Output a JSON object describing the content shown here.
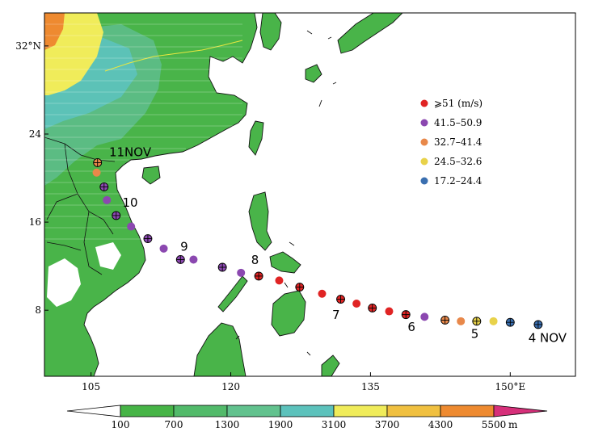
{
  "map": {
    "lon_range": [
      100,
      157
    ],
    "lat_range": [
      2,
      35
    ],
    "lon_ticks": [
      {
        "value": 105,
        "label": "105"
      },
      {
        "value": 120,
        "label": "120"
      },
      {
        "value": 135,
        "label": "135"
      },
      {
        "value": 150,
        "label": "150°E"
      }
    ],
    "lat_ticks": [
      {
        "value": 8,
        "label": "8"
      },
      {
        "value": 16,
        "label": "16"
      },
      {
        "value": 24,
        "label": "24"
      },
      {
        "value": 32,
        "label": "32°N"
      }
    ]
  },
  "legend": {
    "items": [
      {
        "label": "⩾51 (m/s)",
        "color": "#e02424"
      },
      {
        "label": "41.5–50.9",
        "color": "#8b48b0"
      },
      {
        "label": "32.7–41.4",
        "color": "#e8884a"
      },
      {
        "label": "24.5–32.6",
        "color": "#e8d24a"
      },
      {
        "label": "17.2–24.4",
        "color": "#3a6fb0"
      }
    ]
  },
  "colorbar": {
    "labels": [
      "100",
      "700",
      "1300",
      "1900",
      "3100",
      "3700",
      "4300",
      "5500"
    ],
    "unit": "m",
    "colors": [
      "#ffffff",
      "#46b446",
      "#52ba6a",
      "#62c28e",
      "#5cc2bc",
      "#f0ec5a",
      "#f0c040",
      "#ee8a30",
      "#d6307a"
    ]
  },
  "track": {
    "points": [
      {
        "lon": 153.0,
        "lat": 6.7,
        "cat": 4,
        "cross": true
      },
      {
        "lon": 150.0,
        "lat": 6.9,
        "cat": 4,
        "cross": true
      },
      {
        "lon": 148.2,
        "lat": 7.0,
        "cat": 3,
        "cross": false
      },
      {
        "lon": 146.4,
        "lat": 7.0,
        "cat": 3,
        "cross": true
      },
      {
        "lon": 144.7,
        "lat": 7.0,
        "cat": 2,
        "cross": false
      },
      {
        "lon": 143.0,
        "lat": 7.1,
        "cat": 2,
        "cross": true
      },
      {
        "lon": 140.8,
        "lat": 7.4,
        "cat": 1,
        "cross": false
      },
      {
        "lon": 138.8,
        "lat": 7.6,
        "cat": 0,
        "cross": true
      },
      {
        "lon": 137.0,
        "lat": 7.9,
        "cat": 0,
        "cross": false
      },
      {
        "lon": 135.2,
        "lat": 8.2,
        "cat": 0,
        "cross": true
      },
      {
        "lon": 133.5,
        "lat": 8.6,
        "cat": 0,
        "cross": false
      },
      {
        "lon": 131.8,
        "lat": 9.0,
        "cat": 0,
        "cross": true
      },
      {
        "lon": 129.8,
        "lat": 9.5,
        "cat": 0,
        "cross": false
      },
      {
        "lon": 127.4,
        "lat": 10.1,
        "cat": 0,
        "cross": true
      },
      {
        "lon": 125.2,
        "lat": 10.7,
        "cat": 0,
        "cross": false
      },
      {
        "lon": 123.0,
        "lat": 11.1,
        "cat": 0,
        "cross": true
      },
      {
        "lon": 121.1,
        "lat": 11.4,
        "cat": 1,
        "cross": false
      },
      {
        "lon": 119.1,
        "lat": 11.9,
        "cat": 1,
        "cross": true
      },
      {
        "lon": 116.0,
        "lat": 12.6,
        "cat": 1,
        "cross": false
      },
      {
        "lon": 114.6,
        "lat": 12.6,
        "cat": 1,
        "cross": true
      },
      {
        "lon": 112.8,
        "lat": 13.6,
        "cat": 1,
        "cross": false
      },
      {
        "lon": 111.1,
        "lat": 14.5,
        "cat": 1,
        "cross": true
      },
      {
        "lon": 109.3,
        "lat": 15.6,
        "cat": 1,
        "cross": false
      },
      {
        "lon": 107.7,
        "lat": 16.6,
        "cat": 1,
        "cross": true
      },
      {
        "lon": 106.7,
        "lat": 18.0,
        "cat": 1,
        "cross": false
      },
      {
        "lon": 106.4,
        "lat": 19.2,
        "cat": 1,
        "cross": true
      },
      {
        "lon": 105.6,
        "lat": 20.5,
        "cat": 2,
        "cross": false
      },
      {
        "lon": 105.7,
        "lat": 21.4,
        "cat": 2,
        "cross": true
      }
    ],
    "day_labels": [
      {
        "text": "4 NOV",
        "lon": 154.0,
        "lat": 5.1
      },
      {
        "text": "5",
        "lon": 146.2,
        "lat": 5.5
      },
      {
        "text": "6",
        "lon": 139.4,
        "lat": 6.1
      },
      {
        "text": "7",
        "lon": 131.3,
        "lat": 7.2
      },
      {
        "text": "8",
        "lon": 122.6,
        "lat": 12.2
      },
      {
        "text": "9",
        "lon": 115.0,
        "lat": 13.4
      },
      {
        "text": "10",
        "lon": 109.2,
        "lat": 17.4
      },
      {
        "text": "11NOV",
        "lon": 109.2,
        "lat": 22.0
      }
    ]
  }
}
